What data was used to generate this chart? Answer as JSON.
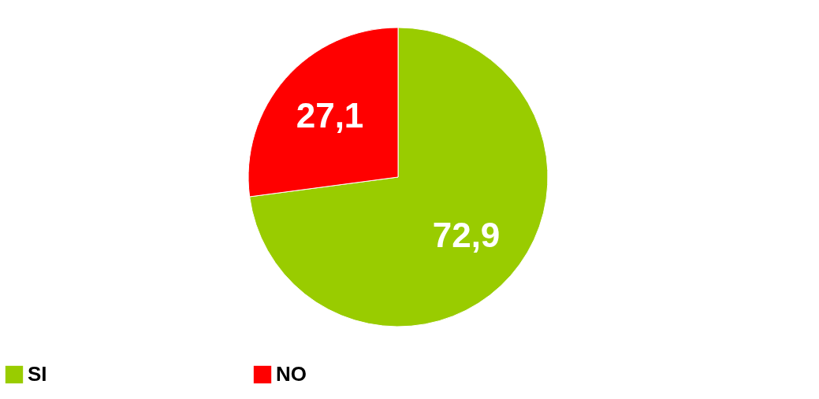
{
  "chart_data": {
    "type": "pie",
    "categories": [
      "SI",
      "NO"
    ],
    "values": [
      72.9,
      27.1
    ],
    "colors": [
      "#99cc00",
      "#ff0000"
    ],
    "value_labels": [
      "72,9",
      "27,1"
    ],
    "legend": "bottom"
  }
}
